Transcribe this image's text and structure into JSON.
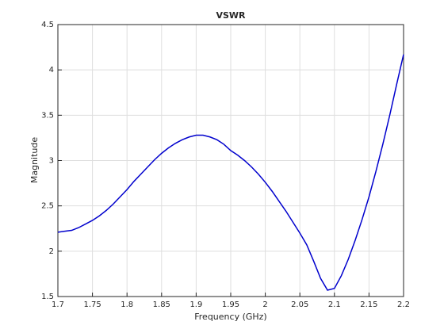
{
  "chart_data": {
    "type": "line",
    "title": "VSWR",
    "x_label": "Frequency (GHz)",
    "y_label": "Magnitude",
    "x": [
      1.7,
      1.71,
      1.72,
      1.73,
      1.74,
      1.75,
      1.76,
      1.77,
      1.78,
      1.79,
      1.8,
      1.81,
      1.82,
      1.83,
      1.84,
      1.85,
      1.86,
      1.87,
      1.88,
      1.89,
      1.9,
      1.91,
      1.92,
      1.93,
      1.94,
      1.95,
      1.96,
      1.97,
      1.98,
      1.99,
      2.0,
      2.01,
      2.02,
      2.03,
      2.04,
      2.05,
      2.06,
      2.07,
      2.08,
      2.09,
      2.1,
      2.11,
      2.12,
      2.13,
      2.14,
      2.15,
      2.16,
      2.17,
      2.18,
      2.19,
      2.2
    ],
    "series": [
      {
        "color": "#0000cd",
        "values": [
          2.21,
          2.22,
          2.23,
          2.26,
          2.3,
          2.34,
          2.39,
          2.45,
          2.52,
          2.6,
          2.68,
          2.77,
          2.85,
          2.93,
          3.01,
          3.08,
          3.14,
          3.19,
          3.23,
          3.26,
          3.28,
          3.28,
          3.26,
          3.23,
          3.18,
          3.11,
          3.06,
          3.0,
          2.93,
          2.85,
          2.76,
          2.66,
          2.55,
          2.44,
          2.32,
          2.2,
          2.07,
          1.89,
          1.7,
          1.57,
          1.59,
          1.73,
          1.91,
          2.12,
          2.35,
          2.6,
          2.88,
          3.18,
          3.5,
          3.84,
          4.17
        ]
      }
    ],
    "xlim": [
      1.7,
      2.2
    ],
    "xticks": [
      1.7,
      1.75,
      1.8,
      1.85,
      1.9,
      1.95,
      2,
      2.05,
      2.1,
      2.15,
      2.2
    ],
    "ylim": [
      1.5,
      4.5
    ],
    "yticks": [
      1.5,
      2,
      2.5,
      3,
      3.5,
      4,
      4.5
    ],
    "grid": true
  }
}
